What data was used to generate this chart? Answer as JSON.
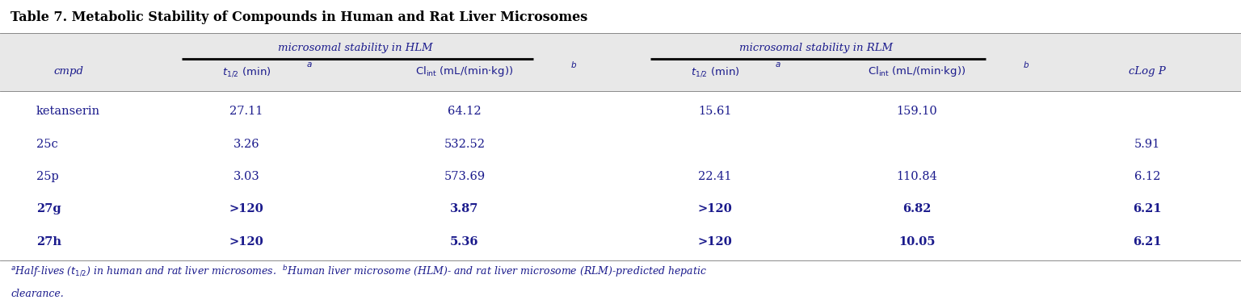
{
  "title": "Table 7. Metabolic Stability of Compounds in Human and Rat Liver Microsomes",
  "bg_color": "#e8e8e8",
  "white_bg": "#ffffff",
  "header_group1": "microsomal stability in HLM",
  "header_group2": "microsomal stability in RLM",
  "rows": [
    [
      "ketanserin",
      "27.11",
      "64.12",
      "15.61",
      "159.10",
      ""
    ],
    [
      "25c",
      "3.26",
      "532.52",
      "",
      "",
      "5.91"
    ],
    [
      "25p",
      "3.03",
      "573.69",
      "22.41",
      "110.84",
      "6.12"
    ],
    [
      "27g",
      ">120",
      "3.87",
      ">120",
      "6.82",
      "6.21"
    ],
    [
      "27h",
      ">120",
      "5.36",
      ">120",
      "10.05",
      "6.21"
    ]
  ],
  "bold_rows": [
    false,
    false,
    false,
    true,
    true
  ],
  "text_color": "#1a1a8c",
  "title_color": "#000000",
  "fig_width": 15.36,
  "fig_height": 3.82,
  "dpi": 100
}
